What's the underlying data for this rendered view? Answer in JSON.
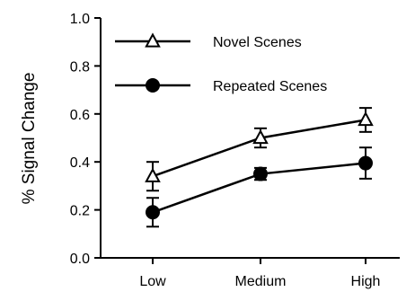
{
  "chart_data": {
    "type": "line",
    "categories": [
      "Low",
      "Medium",
      "High"
    ],
    "ylabel": "% Signal Change",
    "xlabel": "",
    "ylim": [
      0.0,
      1.0
    ],
    "yticks": [
      "0.0",
      "0.2",
      "0.4",
      "0.6",
      "0.8",
      "1.0"
    ],
    "grid": false,
    "legend_position": "top-left",
    "series": [
      {
        "name": "Novel Scenes",
        "marker": "open-triangle",
        "values": [
          0.34,
          0.5,
          0.575
        ],
        "error": [
          0.06,
          0.04,
          0.05
        ]
      },
      {
        "name": "Repeated Scenes",
        "marker": "filled-circle",
        "values": [
          0.19,
          0.35,
          0.395
        ],
        "error": [
          0.06,
          0.025,
          0.065
        ]
      }
    ]
  }
}
